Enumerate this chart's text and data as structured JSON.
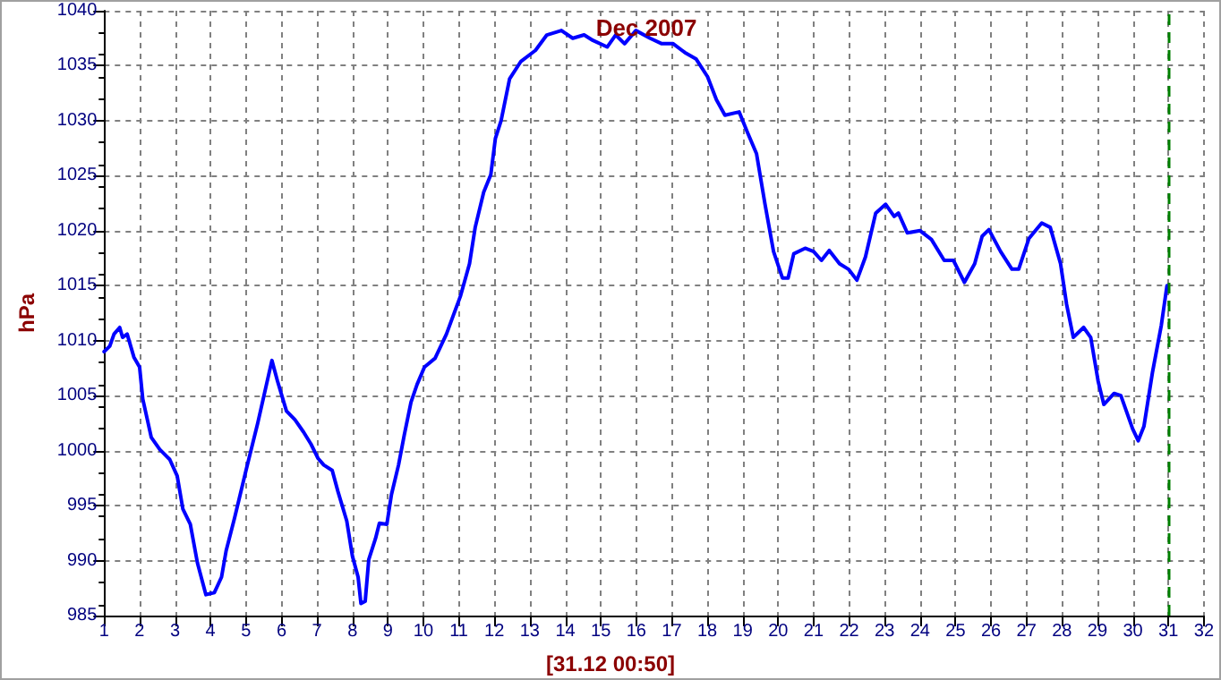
{
  "chart_data": {
    "type": "line",
    "title": "Dec 2007",
    "ylabel": "hPa",
    "annotations": [
      "[31.12 00:50]"
    ],
    "xlim": [
      1,
      32
    ],
    "xticks": [
      1,
      2,
      3,
      4,
      5,
      6,
      7,
      8,
      9,
      10,
      11,
      12,
      13,
      14,
      15,
      16,
      17,
      18,
      19,
      20,
      21,
      22,
      23,
      24,
      25,
      26,
      27,
      28,
      29,
      30,
      31,
      32
    ],
    "ylim": [
      985,
      1040
    ],
    "yticks": [
      985,
      990,
      995,
      1000,
      1005,
      1010,
      1015,
      1020,
      1025,
      1030,
      1035,
      1040
    ],
    "grid": true,
    "marker": "none",
    "line_style": "solid",
    "ref_lines": [
      {
        "axis": "x",
        "value": 31,
        "color": "#008000",
        "line_style": "dashed"
      }
    ],
    "series": [
      {
        "color": "#0000ff",
        "x": [
          1.0,
          1.16,
          1.28,
          1.44,
          1.52,
          1.65,
          1.84,
          2.0,
          2.09,
          2.33,
          2.57,
          2.85,
          3.06,
          3.22,
          3.43,
          3.63,
          3.87,
          4.11,
          4.31,
          4.44,
          4.68,
          5.0,
          5.33,
          5.73,
          5.89,
          6.14,
          6.38,
          6.62,
          6.83,
          7.03,
          7.19,
          7.43,
          7.59,
          7.84,
          8.0,
          8.16,
          8.24,
          8.36,
          8.46,
          8.65,
          8.76,
          8.97,
          9.1,
          9.3,
          9.46,
          9.65,
          9.82,
          10.03,
          10.33,
          10.65,
          11.05,
          11.3,
          11.46,
          11.7,
          11.9,
          12.03,
          12.19,
          12.43,
          12.75,
          13.16,
          13.48,
          13.89,
          14.21,
          14.53,
          14.78,
          15.18,
          15.42,
          15.67,
          15.99,
          16.39,
          16.72,
          17.04,
          17.37,
          17.69,
          18.01,
          18.26,
          18.5,
          18.9,
          19.14,
          19.39,
          19.63,
          19.87,
          20.12,
          20.28,
          20.44,
          20.76,
          21.0,
          21.22,
          21.44,
          21.73,
          21.98,
          22.22,
          22.46,
          22.75,
          23.03,
          23.27,
          23.39,
          23.64,
          24.0,
          24.32,
          24.68,
          24.94,
          25.25,
          25.54,
          25.75,
          25.94,
          26.27,
          26.59,
          26.78,
          27.07,
          27.43,
          27.67,
          27.96,
          28.13,
          28.32,
          28.61,
          28.81,
          29.02,
          29.18,
          29.47,
          29.66,
          29.99,
          30.15,
          30.31,
          30.55,
          30.8,
          30.96
        ],
        "values": [
          1009.0,
          1009.5,
          1010.6,
          1011.2,
          1010.3,
          1010.6,
          1008.5,
          1007.6,
          1004.7,
          1001.2,
          1000.1,
          999.2,
          997.7,
          994.7,
          993.3,
          989.8,
          986.9,
          987.1,
          988.5,
          990.9,
          993.9,
          998.2,
          1002.5,
          1008.2,
          1006.3,
          1003.6,
          1002.8,
          1001.7,
          1000.6,
          999.3,
          998.7,
          998.2,
          996.3,
          993.6,
          990.4,
          988.5,
          986.1,
          986.3,
          990.1,
          992.0,
          993.4,
          993.3,
          996.0,
          998.7,
          1001.4,
          1004.4,
          1006.0,
          1007.6,
          1008.4,
          1010.6,
          1014.1,
          1017.0,
          1020.3,
          1023.5,
          1025.1,
          1028.4,
          1030.0,
          1033.8,
          1035.4,
          1036.4,
          1037.8,
          1038.2,
          1037.5,
          1037.8,
          1037.3,
          1036.7,
          1037.8,
          1037.0,
          1038.2,
          1037.5,
          1037.0,
          1037.0,
          1036.2,
          1035.6,
          1034.0,
          1031.9,
          1030.5,
          1030.8,
          1028.9,
          1027.0,
          1022.4,
          1018.1,
          1015.7,
          1015.7,
          1017.9,
          1018.4,
          1018.1,
          1017.3,
          1018.2,
          1017.0,
          1016.5,
          1015.5,
          1017.6,
          1021.6,
          1022.4,
          1021.3,
          1021.6,
          1019.8,
          1020.0,
          1019.2,
          1017.3,
          1017.3,
          1015.3,
          1017.0,
          1019.5,
          1020.1,
          1018.1,
          1016.5,
          1016.5,
          1019.3,
          1020.7,
          1020.3,
          1017.0,
          1013.3,
          1010.3,
          1011.2,
          1010.3,
          1006.3,
          1004.2,
          1005.2,
          1005.0,
          1002.0,
          1000.9,
          1002.2,
          1007.1,
          1011.4,
          1015.0
        ]
      }
    ]
  }
}
